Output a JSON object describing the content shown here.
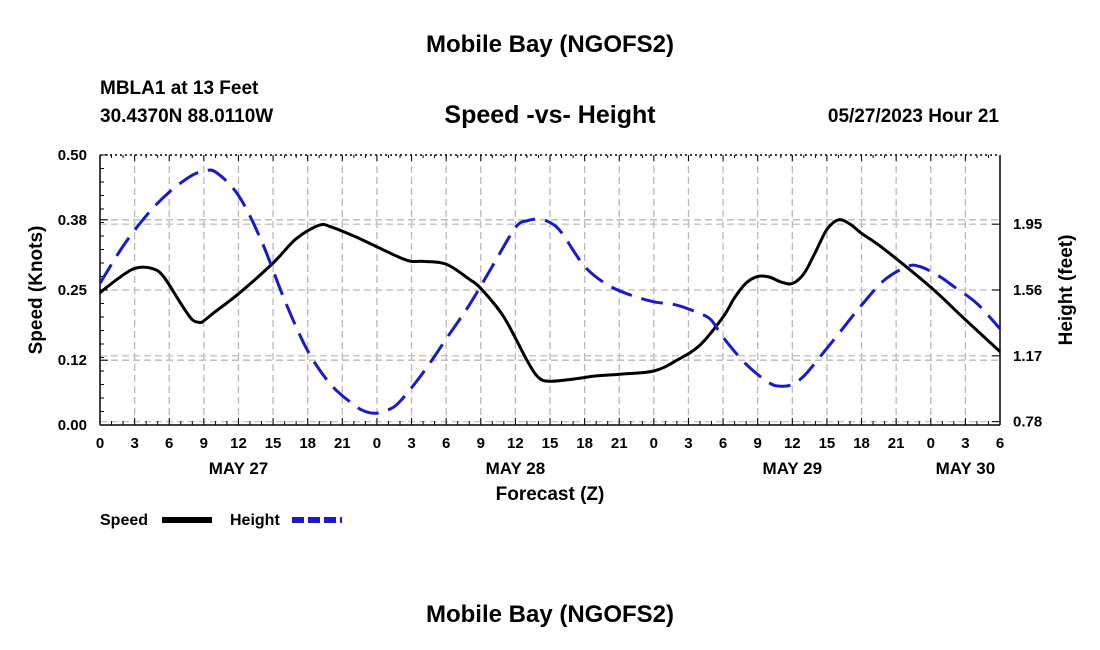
{
  "title": "Mobile Bay (NGOFS2)",
  "footer_title": "Mobile Bay (NGOFS2)",
  "station": {
    "name": "MBLA1 at 13 Feet",
    "coords": "30.4370N  88.0110W"
  },
  "run_time": "05/27/2023 Hour 21",
  "chart_data": {
    "type": "line",
    "title": "Speed -vs- Height",
    "xlabel": "Forecast (Z)",
    "ylabel": "Speed (Knots)",
    "y2label": "Height (feet)",
    "xlim": [
      0,
      78
    ],
    "ylim": [
      0,
      0.5
    ],
    "y2lim": [
      0.76,
      2.36
    ],
    "x_tick_labels": [
      "0",
      "3",
      "6",
      "9",
      "12",
      "15",
      "18",
      "21",
      "0",
      "3",
      "6",
      "9",
      "12",
      "15",
      "18",
      "21",
      "0",
      "3",
      "6",
      "9",
      "12",
      "15",
      "18",
      "21",
      "0",
      "3",
      "6"
    ],
    "day_labels": [
      {
        "x": 12,
        "label": "MAY 27"
      },
      {
        "x": 36,
        "label": "MAY 28"
      },
      {
        "x": 60,
        "label": "MAY 29"
      },
      {
        "x": 75,
        "label": "MAY 30"
      }
    ],
    "y_ticks": [
      0.0,
      0.12,
      0.25,
      0.38,
      0.5
    ],
    "y_tick_labels": [
      "0.00",
      "0.12",
      "0.25",
      "0.38",
      "0.50"
    ],
    "y2_ticks": [
      0.78,
      1.17,
      1.56,
      1.95
    ],
    "y2_tick_labels": [
      "0.78",
      "1.17",
      "1.56",
      "1.95"
    ],
    "legend_position": "bottom-left",
    "series": [
      {
        "name": "Speed",
        "axis": "left",
        "color": "#000000",
        "style": "solid",
        "x": [
          0,
          1.5,
          3,
          4.5,
          5.5,
          7,
          8,
          8.7,
          9,
          10,
          12,
          15,
          17,
          19,
          20,
          22,
          24,
          26,
          27,
          28,
          30,
          32,
          33,
          35,
          37,
          38,
          39,
          41,
          43,
          45,
          48,
          50,
          52,
          54,
          55,
          56,
          57,
          58,
          59,
          60,
          61,
          62,
          63,
          64,
          65,
          66,
          68,
          72,
          75,
          78
        ],
        "y": [
          0.245,
          0.27,
          0.29,
          0.29,
          0.275,
          0.225,
          0.195,
          0.19,
          0.193,
          0.21,
          0.243,
          0.3,
          0.345,
          0.37,
          0.367,
          0.35,
          0.33,
          0.31,
          0.303,
          0.303,
          0.298,
          0.27,
          0.253,
          0.2,
          0.12,
          0.088,
          0.081,
          0.085,
          0.091,
          0.094,
          0.1,
          0.12,
          0.148,
          0.2,
          0.236,
          0.263,
          0.275,
          0.274,
          0.265,
          0.262,
          0.28,
          0.32,
          0.362,
          0.38,
          0.372,
          0.355,
          0.325,
          0.255,
          0.195,
          0.136
        ]
      },
      {
        "name": "Height",
        "axis": "right",
        "color": "#1a1acc",
        "style": "dashed",
        "x": [
          0,
          2,
          4,
          6,
          8,
          9,
          10,
          12,
          14,
          16,
          18,
          20,
          22,
          23,
          24,
          25,
          26,
          28,
          30,
          32,
          34,
          36,
          37,
          38,
          39,
          40,
          42,
          44,
          46,
          48,
          50,
          52,
          53,
          54,
          56,
          58,
          59,
          60,
          61,
          62,
          64,
          66,
          68,
          70,
          71,
          72,
          73,
          74,
          76,
          78
        ],
        "y": [
          1.6,
          1.82,
          2.0,
          2.14,
          2.24,
          2.26,
          2.26,
          2.12,
          1.85,
          1.5,
          1.2,
          1.0,
          0.88,
          0.84,
          0.83,
          0.85,
          0.9,
          1.07,
          1.27,
          1.47,
          1.7,
          1.93,
          1.97,
          1.98,
          1.96,
          1.9,
          1.7,
          1.59,
          1.53,
          1.49,
          1.47,
          1.42,
          1.38,
          1.28,
          1.12,
          1.01,
          0.99,
          1.0,
          1.05,
          1.13,
          1.3,
          1.47,
          1.62,
          1.7,
          1.7,
          1.67,
          1.63,
          1.58,
          1.48,
          1.33
        ]
      }
    ]
  }
}
